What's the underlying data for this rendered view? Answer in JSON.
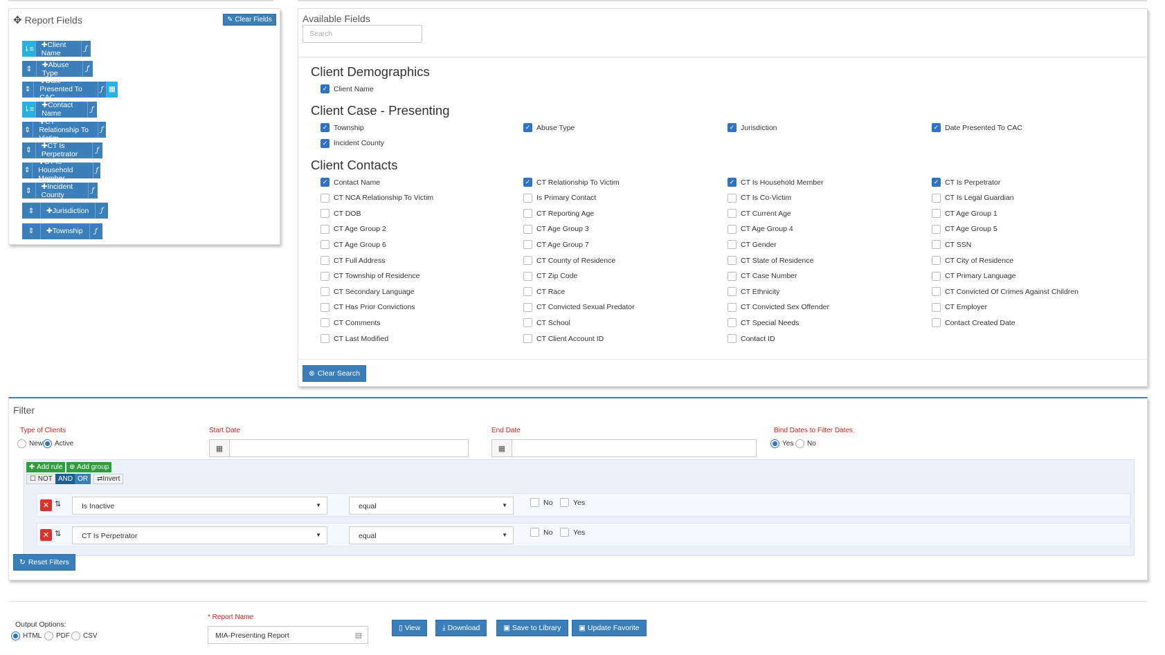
{
  "report_fields": {
    "title": "Report Fields",
    "clear_label": "Clear Fields",
    "items": [
      {
        "label": "Client Name",
        "active": true,
        "calendar": false
      },
      {
        "label": "Abuse Type",
        "active": false,
        "calendar": false
      },
      {
        "label": "Date Presented To CAC",
        "active": false,
        "calendar": true
      },
      {
        "label": "Contact Name",
        "active": true,
        "calendar": false
      },
      {
        "label": "CT Relationship To Victim",
        "active": false,
        "calendar": false
      },
      {
        "label": "CT Is Perpetrator",
        "active": false,
        "calendar": false
      },
      {
        "label": "CT Is Household Member",
        "active": false,
        "calendar": false
      },
      {
        "label": "Incident County",
        "active": false,
        "calendar": false
      },
      {
        "label": "Jurisdiction",
        "active": false,
        "calendar": false
      },
      {
        "label": "Township",
        "active": false,
        "calendar": false
      }
    ]
  },
  "available_fields": {
    "title": "Available Fields",
    "search_placeholder": "Search",
    "clear_search_label": "Clear Search",
    "sections": [
      {
        "title": "Client Demographics",
        "fields": [
          {
            "label": "Client Name",
            "checked": true
          }
        ]
      },
      {
        "title": "Client Case - Presenting",
        "fields": [
          {
            "label": "Township",
            "checked": true
          },
          {
            "label": "Abuse Type",
            "checked": true
          },
          {
            "label": "Jurisdiction",
            "checked": true
          },
          {
            "label": "Date Presented To CAC",
            "checked": true
          },
          {
            "label": "Incident County",
            "checked": true
          }
        ]
      },
      {
        "title": "Client Contacts",
        "fields": [
          {
            "label": "Contact Name",
            "checked": true
          },
          {
            "label": "CT Relationship To Victim",
            "checked": true
          },
          {
            "label": "CT Is Household Member",
            "checked": true
          },
          {
            "label": "CT Is Perpetrator",
            "checked": true
          },
          {
            "label": "CT NCA Relationship To Victim",
            "checked": false
          },
          {
            "label": "Is Primary Contact",
            "checked": false
          },
          {
            "label": "CT Is Co-Victim",
            "checked": false
          },
          {
            "label": "CT Is Legal Guardian",
            "checked": false
          },
          {
            "label": "CT DOB",
            "checked": false
          },
          {
            "label": "CT Reporting Age",
            "checked": false
          },
          {
            "label": "CT Current Age",
            "checked": false
          },
          {
            "label": "CT Age Group 1",
            "checked": false
          },
          {
            "label": "CT Age Group 2",
            "checked": false
          },
          {
            "label": "CT Age Group 3",
            "checked": false
          },
          {
            "label": "CT Age Group 4",
            "checked": false
          },
          {
            "label": "CT Age Group 5",
            "checked": false
          },
          {
            "label": "CT Age Group 6",
            "checked": false
          },
          {
            "label": "CT Age Group 7",
            "checked": false
          },
          {
            "label": "CT Gender",
            "checked": false
          },
          {
            "label": "CT SSN",
            "checked": false
          },
          {
            "label": "CT Full Address",
            "checked": false
          },
          {
            "label": "CT County of Residence",
            "checked": false
          },
          {
            "label": "CT State of Residence",
            "checked": false
          },
          {
            "label": "CT City of Residence",
            "checked": false
          },
          {
            "label": "CT Township of Residence",
            "checked": false
          },
          {
            "label": "CT Zip Code",
            "checked": false
          },
          {
            "label": "CT Case Number",
            "checked": false
          },
          {
            "label": "CT Primary Language",
            "checked": false
          },
          {
            "label": "CT Secondary Language",
            "checked": false
          },
          {
            "label": "CT Race",
            "checked": false
          },
          {
            "label": "CT Ethnicity",
            "checked": false
          },
          {
            "label": "CT Convicted Of Crimes Against Children",
            "checked": false
          },
          {
            "label": "CT Has Prior Convictions",
            "checked": false
          },
          {
            "label": "CT Convicted Sexual Predator",
            "checked": false
          },
          {
            "label": "CT Convicted Sex Offender",
            "checked": false
          },
          {
            "label": "CT Employer",
            "checked": false
          },
          {
            "label": "CT Comments",
            "checked": false
          },
          {
            "label": "CT School",
            "checked": false
          },
          {
            "label": "CT Special Needs",
            "checked": false
          },
          {
            "label": "Contact Created Date",
            "checked": false
          },
          {
            "label": "CT Last Modified",
            "checked": false
          },
          {
            "label": "CT Client Account ID",
            "checked": false
          },
          {
            "label": "Contact ID",
            "checked": false
          }
        ]
      }
    ]
  },
  "filter": {
    "title": "Filter",
    "type_label": "Type of Clients",
    "type_options": [
      "New",
      "Active"
    ],
    "type_selected": "Active",
    "start_label": "Start Date",
    "end_label": "End Date",
    "bind_label": "Bind Dates to Filter Dates:",
    "bind_options": [
      "Yes",
      "No"
    ],
    "bind_selected": "Yes",
    "add_rule": "Add rule",
    "add_group": "Add group",
    "not_label": "NOT",
    "and_label": "AND",
    "or_label": "OR",
    "invert_label": "Invert",
    "rules": [
      {
        "field": "Is Inactive",
        "operator": "equal",
        "opt_no": "No",
        "opt_yes": "Yes"
      },
      {
        "field": "CT Is Perpetrator",
        "operator": "equal",
        "opt_no": "No",
        "opt_yes": "Yes"
      }
    ],
    "reset_label": "Reset Filters"
  },
  "output": {
    "label": "Output Options:",
    "options": [
      "HTML",
      "PDF",
      "CSV"
    ],
    "selected": "HTML",
    "report_name_label": "Report Name",
    "report_name_value": "MIA-Presenting Report",
    "buttons": [
      "View",
      "Download",
      "Save to Library",
      "Update Favorite"
    ]
  },
  "colors": {
    "primary": "#3a7fb9",
    "active": "#29b0e2",
    "required": "#cc2020"
  }
}
